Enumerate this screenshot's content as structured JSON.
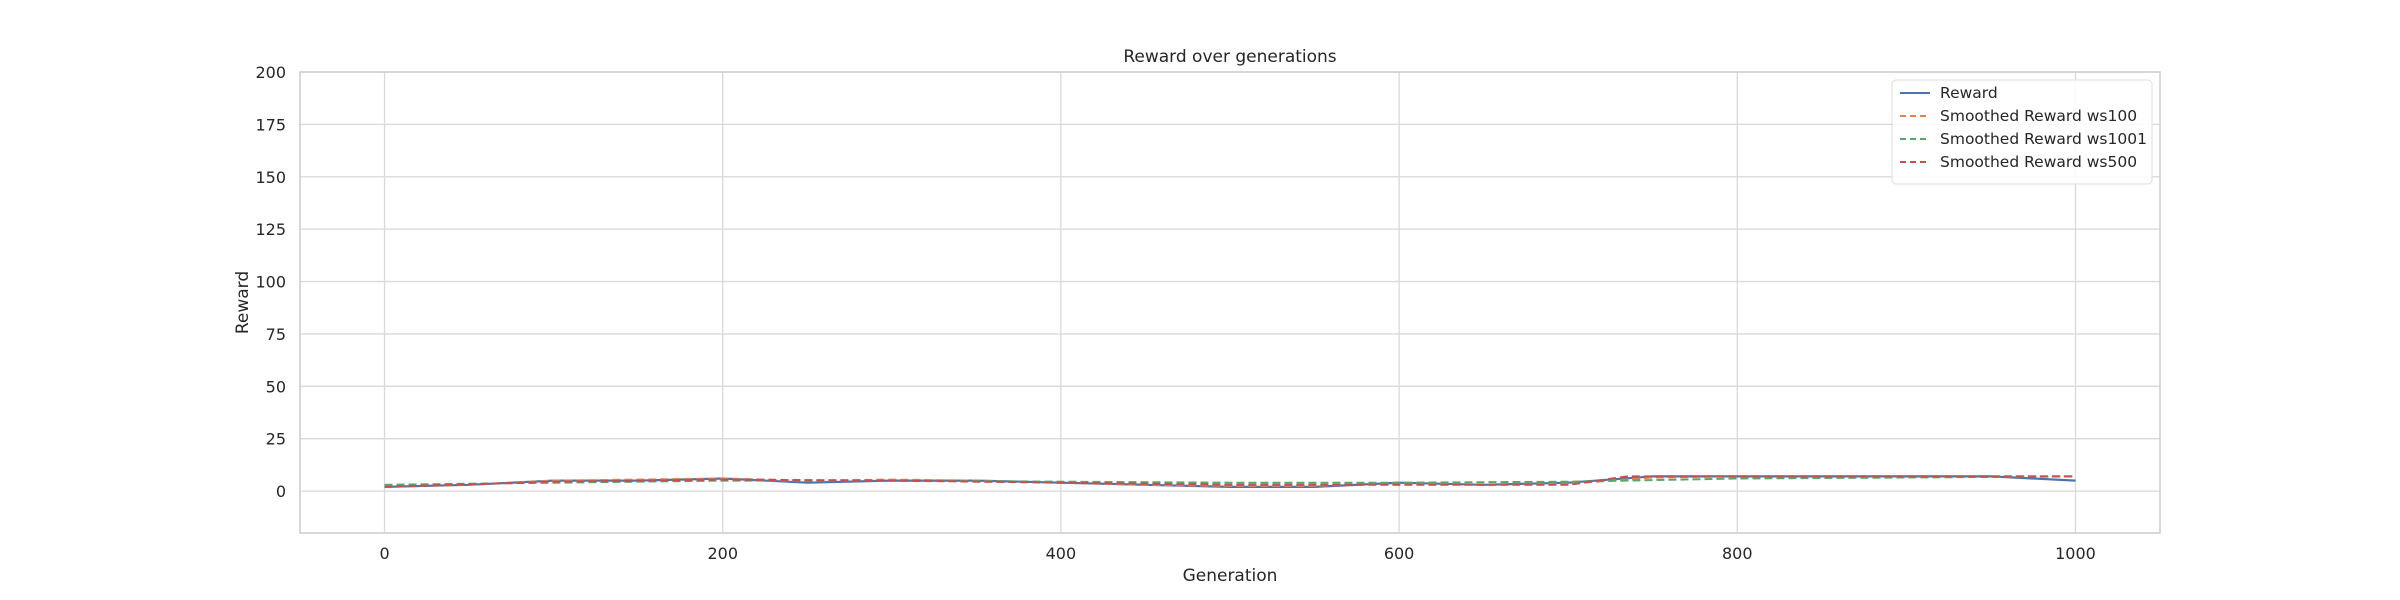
{
  "chart_data": {
    "type": "line",
    "title": "Reward over generations",
    "xlabel": "Generation",
    "ylabel": "Reward",
    "xlim": [
      -50,
      1050
    ],
    "ylim": [
      -20,
      200
    ],
    "xticks": [
      0,
      200,
      400,
      600,
      800,
      1000
    ],
    "yticks": [
      0,
      25,
      50,
      75,
      100,
      125,
      150,
      175,
      200
    ],
    "grid": true,
    "legend_position": "top-right",
    "series": [
      {
        "name": "Reward",
        "color": "#4c72b0",
        "style": "solid",
        "x": [
          0,
          50,
          100,
          150,
          200,
          250,
          300,
          350,
          400,
          450,
          500,
          550,
          600,
          650,
          700,
          750,
          800,
          850,
          900,
          950,
          1000
        ],
        "y": [
          2,
          3,
          5,
          5,
          6,
          4,
          5,
          5,
          4,
          3,
          2,
          2,
          4,
          3,
          4,
          7,
          7,
          7,
          7,
          7,
          5
        ]
      },
      {
        "name": "Smoothed Reward ws100",
        "color": "#dd8452",
        "style": "dashed",
        "x": [
          0,
          50,
          100,
          150,
          200,
          250,
          300,
          350,
          400,
          450,
          500,
          550,
          600,
          650,
          700,
          750,
          800,
          850,
          900,
          950,
          1000
        ],
        "y": [
          2,
          3,
          5,
          5.5,
          6,
          5,
          5.5,
          5,
          4,
          3,
          2.5,
          2.5,
          4,
          3,
          3.5,
          6.5,
          7,
          7,
          7,
          7,
          7
        ]
      },
      {
        "name": "Smoothed Reward ws1001",
        "color": "#55a868",
        "style": "dashed",
        "x": [
          0,
          100,
          200,
          300,
          400,
          500,
          600,
          700,
          800,
          900,
          1000
        ],
        "y": [
          3,
          4,
          5,
          5,
          4.5,
          4,
          4,
          4.5,
          6,
          6.5,
          7
        ]
      },
      {
        "name": "Smoothed Reward ws500",
        "color": "#c44e52",
        "style": "dashed",
        "x": [
          0,
          100,
          200,
          300,
          400,
          500,
          600,
          700,
          735,
          800,
          900,
          1000
        ],
        "y": [
          2,
          4.5,
          5.5,
          5,
          4,
          3,
          3,
          3,
          7,
          7,
          7,
          7
        ]
      }
    ]
  }
}
